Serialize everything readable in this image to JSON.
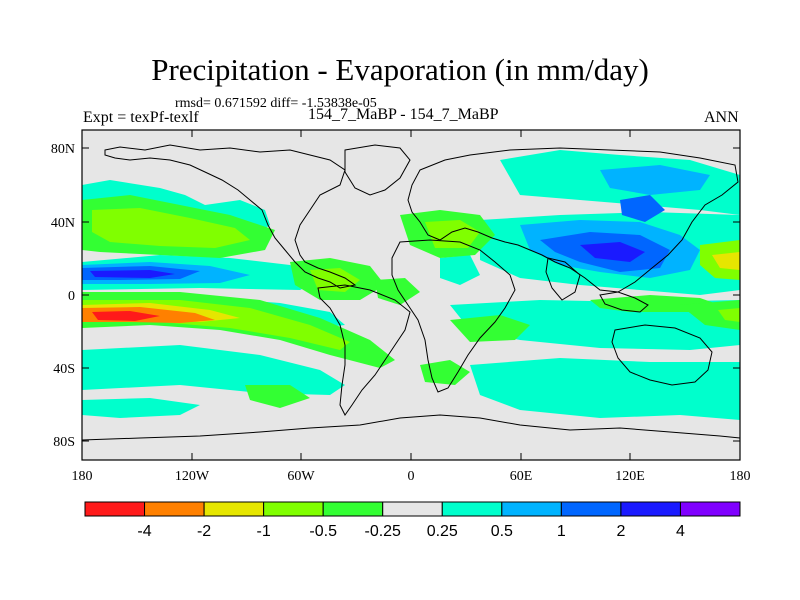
{
  "title": "Precipitation - Evaporation (in mm/day)",
  "stats": "rmsd= 0.671592 diff= -1.53838e-05",
  "experiment": "Expt = texPf-texlf",
  "subtitle": "154_7_MaBP - 154_7_MaBP",
  "season": "ANN",
  "map": {
    "lat_ticks": [
      "80N",
      "40N",
      "0",
      "40S",
      "80S"
    ],
    "lon_ticks": [
      "180",
      "120W",
      "60W",
      "0",
      "60E",
      "120E",
      "180"
    ]
  },
  "colorbar": {
    "labels": [
      "-4",
      "-2",
      "-1",
      "-0.5",
      "-0.25",
      "0.25",
      "0.5",
      "1",
      "2",
      "4"
    ],
    "colors": [
      "#ff1a1a",
      "#ff8000",
      "#e6e600",
      "#80ff00",
      "#33ff33",
      "#e6e6e6",
      "#00ffcc",
      "#00b3ff",
      "#0066ff",
      "#1a1aff",
      "#8000ff"
    ]
  },
  "colors": {
    "land": "#e6e6e6",
    "coast": "#000000"
  }
}
